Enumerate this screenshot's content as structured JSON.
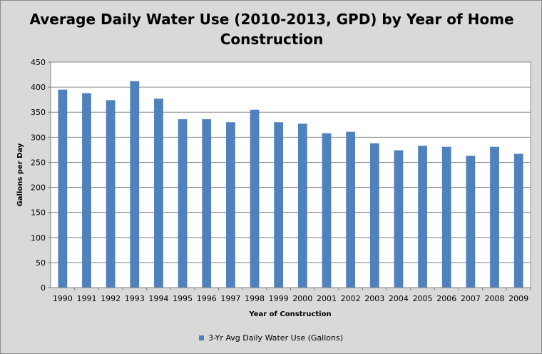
{
  "chart_data": {
    "type": "bar",
    "title": "Average Daily Water Use (2010-2013, GPD) by Year of Home Construction",
    "xlabel": "Year of Construction",
    "ylabel": "Gallons  per Day",
    "categories": [
      "1990",
      "1991",
      "1992",
      "1993",
      "1994",
      "1995",
      "1996",
      "1997",
      "1998",
      "1999",
      "2000",
      "2001",
      "2002",
      "2003",
      "2004",
      "2005",
      "2006",
      "2007",
      "2008",
      "2009"
    ],
    "series": [
      {
        "name": "3-Yr Avg Daily Water Use (Gallons)",
        "values": [
          395,
          388,
          374,
          412,
          377,
          336,
          336,
          330,
          355,
          330,
          327,
          308,
          311,
          288,
          274,
          283,
          281,
          263,
          281,
          267
        ]
      }
    ],
    "ylim": [
      0,
      450
    ],
    "yticks": [
      0,
      50,
      100,
      150,
      200,
      250,
      300,
      350,
      400,
      450
    ],
    "grid": true,
    "legend": "bottom",
    "bar_color": "#4f81bd"
  }
}
